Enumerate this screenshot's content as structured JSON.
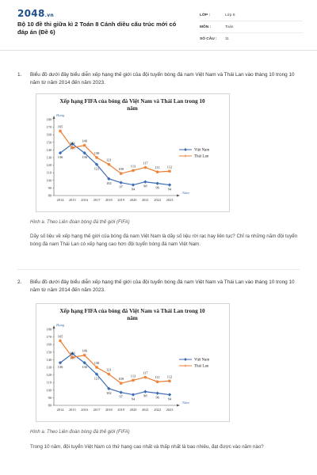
{
  "header": {
    "logo_main": "2048",
    "logo_suffix": ".vn",
    "title": "Bộ 10 đề thi giữa kì 2 Toán 8 Cánh diều cấu trúc mới có đáp án (Đề 6)",
    "meta": [
      {
        "key": "LỚP :",
        "value": "Lớp 8"
      },
      {
        "key": "MÔN :",
        "value": "Toán"
      },
      {
        "key": "SỐ CÂU :",
        "value": "11"
      }
    ]
  },
  "questions": [
    {
      "number": "1.",
      "stem": "Biểu đồ dưới đây biểu diễn xếp hạng thế giới của đội tuyển bóng đá nam Việt Nam và Thái Lan vào tháng 10 trong 10 năm từ năm 2014 đến năm 2023.",
      "caption_prefix": "Hình a.",
      "caption_text": " Theo Liên đoàn bóng đá thế giới (FIFA)",
      "text": "Dãy số liệu về xếp hạng thế giới của bóng đá nam Việt Nam là dãy số liệu rời rạc hay liên tục? Chỉ ra những năm đội tuyển bóng đá nam Thái Lan có xếp hạng cao hơn đội tuyển bóng đá nam Việt Nam."
    },
    {
      "number": "2.",
      "stem": "Biểu đồ dưới đây biểu diễn xếp hạng thế giới của đội tuyển bóng đá nam Việt Nam và Thái Lan vào tháng 10 trong 10 năm từ năm 2014 đến năm 2023.",
      "caption_prefix": "Hình a.",
      "caption_text": " Theo Liên đoàn bóng đá thế giới (FIFA)",
      "text": "Trong 10 năm, đội tuyển Việt Nam có thứ hạng cao nhất và thấp nhất là bao nhiêu, đạt được vào năm nào?"
    }
  ],
  "chart_data": [
    {
      "type": "line",
      "title": "Xếp hạng FIFA của bóng đá Việt Nam và Thái Lan trong 10 năm",
      "ylabel": "Hạng",
      "xlabel": "Năm",
      "x": [
        "2014",
        "2015",
        "2016",
        "2017",
        "2018",
        "2019",
        "2020",
        "2021",
        "2022",
        "2023"
      ],
      "ylim": [
        80,
        180
      ],
      "yticks": [
        80,
        90,
        100,
        110,
        120,
        130,
        140,
        150,
        160,
        170,
        180
      ],
      "grid": false,
      "legend": "right",
      "series": [
        {
          "name": "Việt Nam",
          "color": "#3e6db5",
          "values": [
            136,
            148,
            136,
            121,
            102,
            97,
            94,
            98,
            96,
            94
          ]
        },
        {
          "name": "Thái Lan",
          "color": "#ed7d31",
          "values": [
            165,
            143,
            146,
            130,
            121,
            109,
            113,
            117,
            111,
            112
          ]
        }
      ]
    },
    {
      "type": "line",
      "title": "Xếp hạng FIFA của bóng đá Việt Nam và Thái Lan trong 10 năm",
      "ylabel": "Hạng",
      "xlabel": "Năm",
      "x": [
        "2014",
        "2015",
        "2016",
        "2017",
        "2018",
        "2019",
        "2020",
        "2021",
        "2022",
        "2023"
      ],
      "ylim": [
        80,
        180
      ],
      "yticks": [
        80,
        90,
        100,
        110,
        120,
        130,
        140,
        150,
        160,
        170,
        180
      ],
      "grid": false,
      "legend": "right",
      "series": [
        {
          "name": "Việt Nam",
          "color": "#3e6db5",
          "values": [
            136,
            148,
            136,
            121,
            102,
            97,
            94,
            98,
            96,
            94
          ]
        },
        {
          "name": "Thái Lan",
          "color": "#ed7d31",
          "values": [
            165,
            143,
            146,
            130,
            121,
            109,
            113,
            117,
            111,
            112
          ]
        }
      ]
    }
  ]
}
